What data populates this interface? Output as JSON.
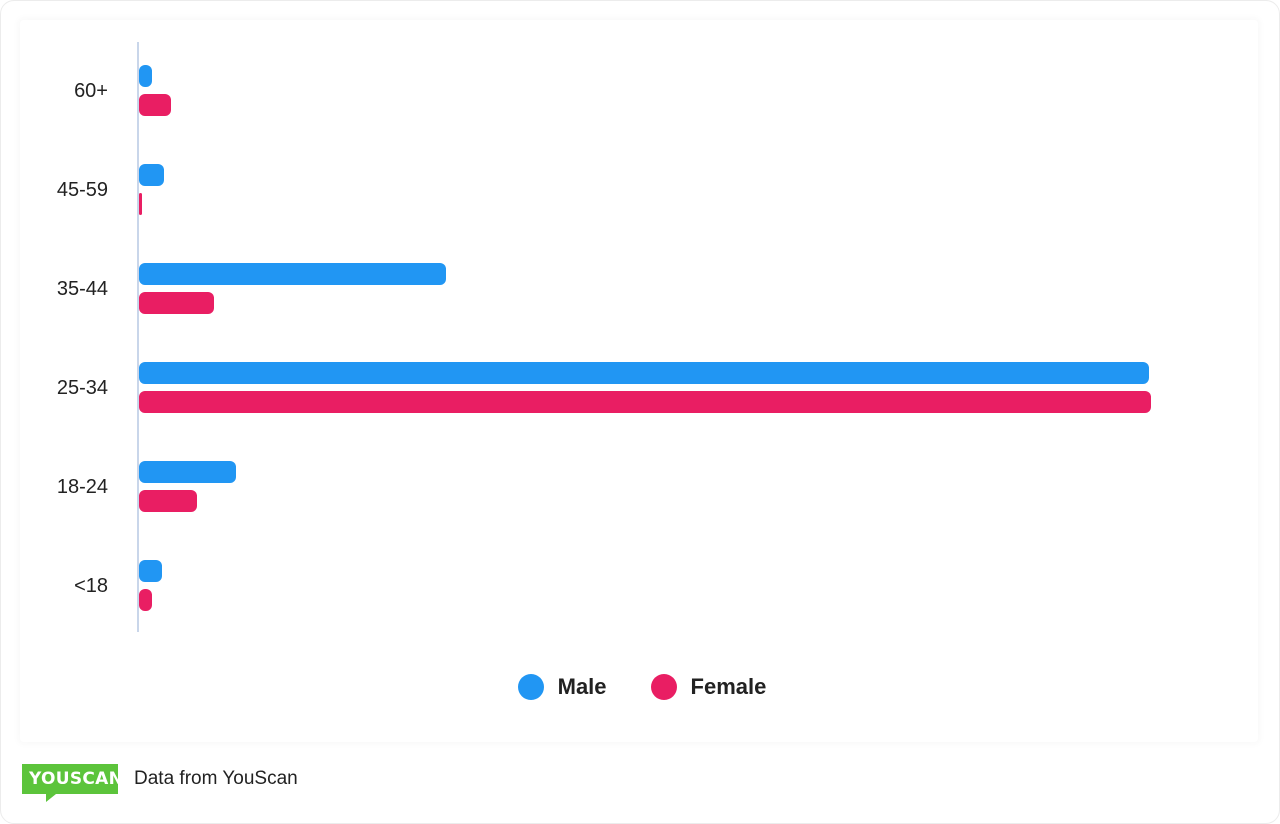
{
  "chart_data": {
    "type": "bar",
    "orientation": "horizontal",
    "title": "",
    "xlabel": "",
    "ylabel": "",
    "value_scale": "relative (0-100, longest bar = 100; no numeric axis shown)",
    "categories": [
      "60+",
      "45-59",
      "35-44",
      "25-34",
      "18-24",
      "<18"
    ],
    "series": [
      {
        "name": "Male",
        "color": "#2196f3",
        "values": [
          1.3,
          2.5,
          30.3,
          99.8,
          9.6,
          2.3
        ]
      },
      {
        "name": "Female",
        "color": "#e91e63",
        "values": [
          3.2,
          0.3,
          7.4,
          100,
          5.7,
          1.3
        ]
      }
    ],
    "grid": false,
    "legend_position": "bottom-center"
  },
  "legend": {
    "items": [
      {
        "label": "Male",
        "color": "#2196f3"
      },
      {
        "label": "Female",
        "color": "#e91e63"
      }
    ]
  },
  "footer": {
    "logo_text": "YOUSCAN",
    "logo_color": "#5cc43b",
    "source_text": "Data from YouScan"
  }
}
